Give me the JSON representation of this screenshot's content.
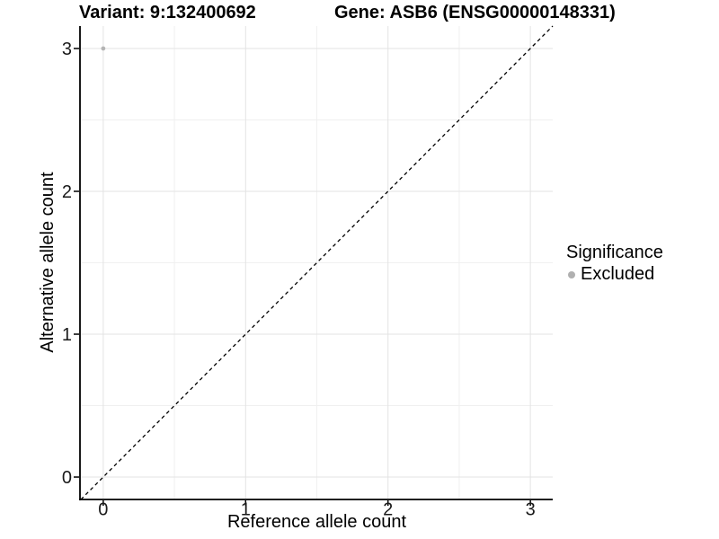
{
  "titles": {
    "left": "Variant: 9:132400692",
    "right": "Gene: ASB6 (ENSG00000148331)"
  },
  "chart_data": {
    "type": "scatter",
    "title": "Variant: 9:132400692    Gene: ASB6 (ENSG00000148331)",
    "xlabel": "Reference allele count",
    "ylabel": "Alternative allele count",
    "xlim": [
      -0.157,
      3.157
    ],
    "ylim": [
      -0.157,
      3.157
    ],
    "x_ticks": [
      0,
      1,
      2,
      3
    ],
    "y_ticks": [
      0,
      1,
      2,
      3
    ],
    "x_minor_ticks": [
      0.5,
      1.5,
      2.5
    ],
    "y_minor_ticks": [
      0.5,
      1.5,
      2.5
    ],
    "grid": true,
    "points": [
      {
        "x": 0,
        "y": 3,
        "series": "Excluded"
      }
    ],
    "reference_line": {
      "type": "identity",
      "style": "dashed",
      "color": "#000000"
    },
    "legend": {
      "title": "Significance",
      "position": "right",
      "items": [
        {
          "label": "Excluded",
          "color": "#b0b0b0"
        }
      ]
    },
    "colors": {
      "point": "#b4b4b4",
      "grid_major": "#e3e3e3",
      "grid_minor": "#f0f0f0",
      "axis_line": "#000000",
      "tick_text": "#1a1a1a"
    }
  }
}
